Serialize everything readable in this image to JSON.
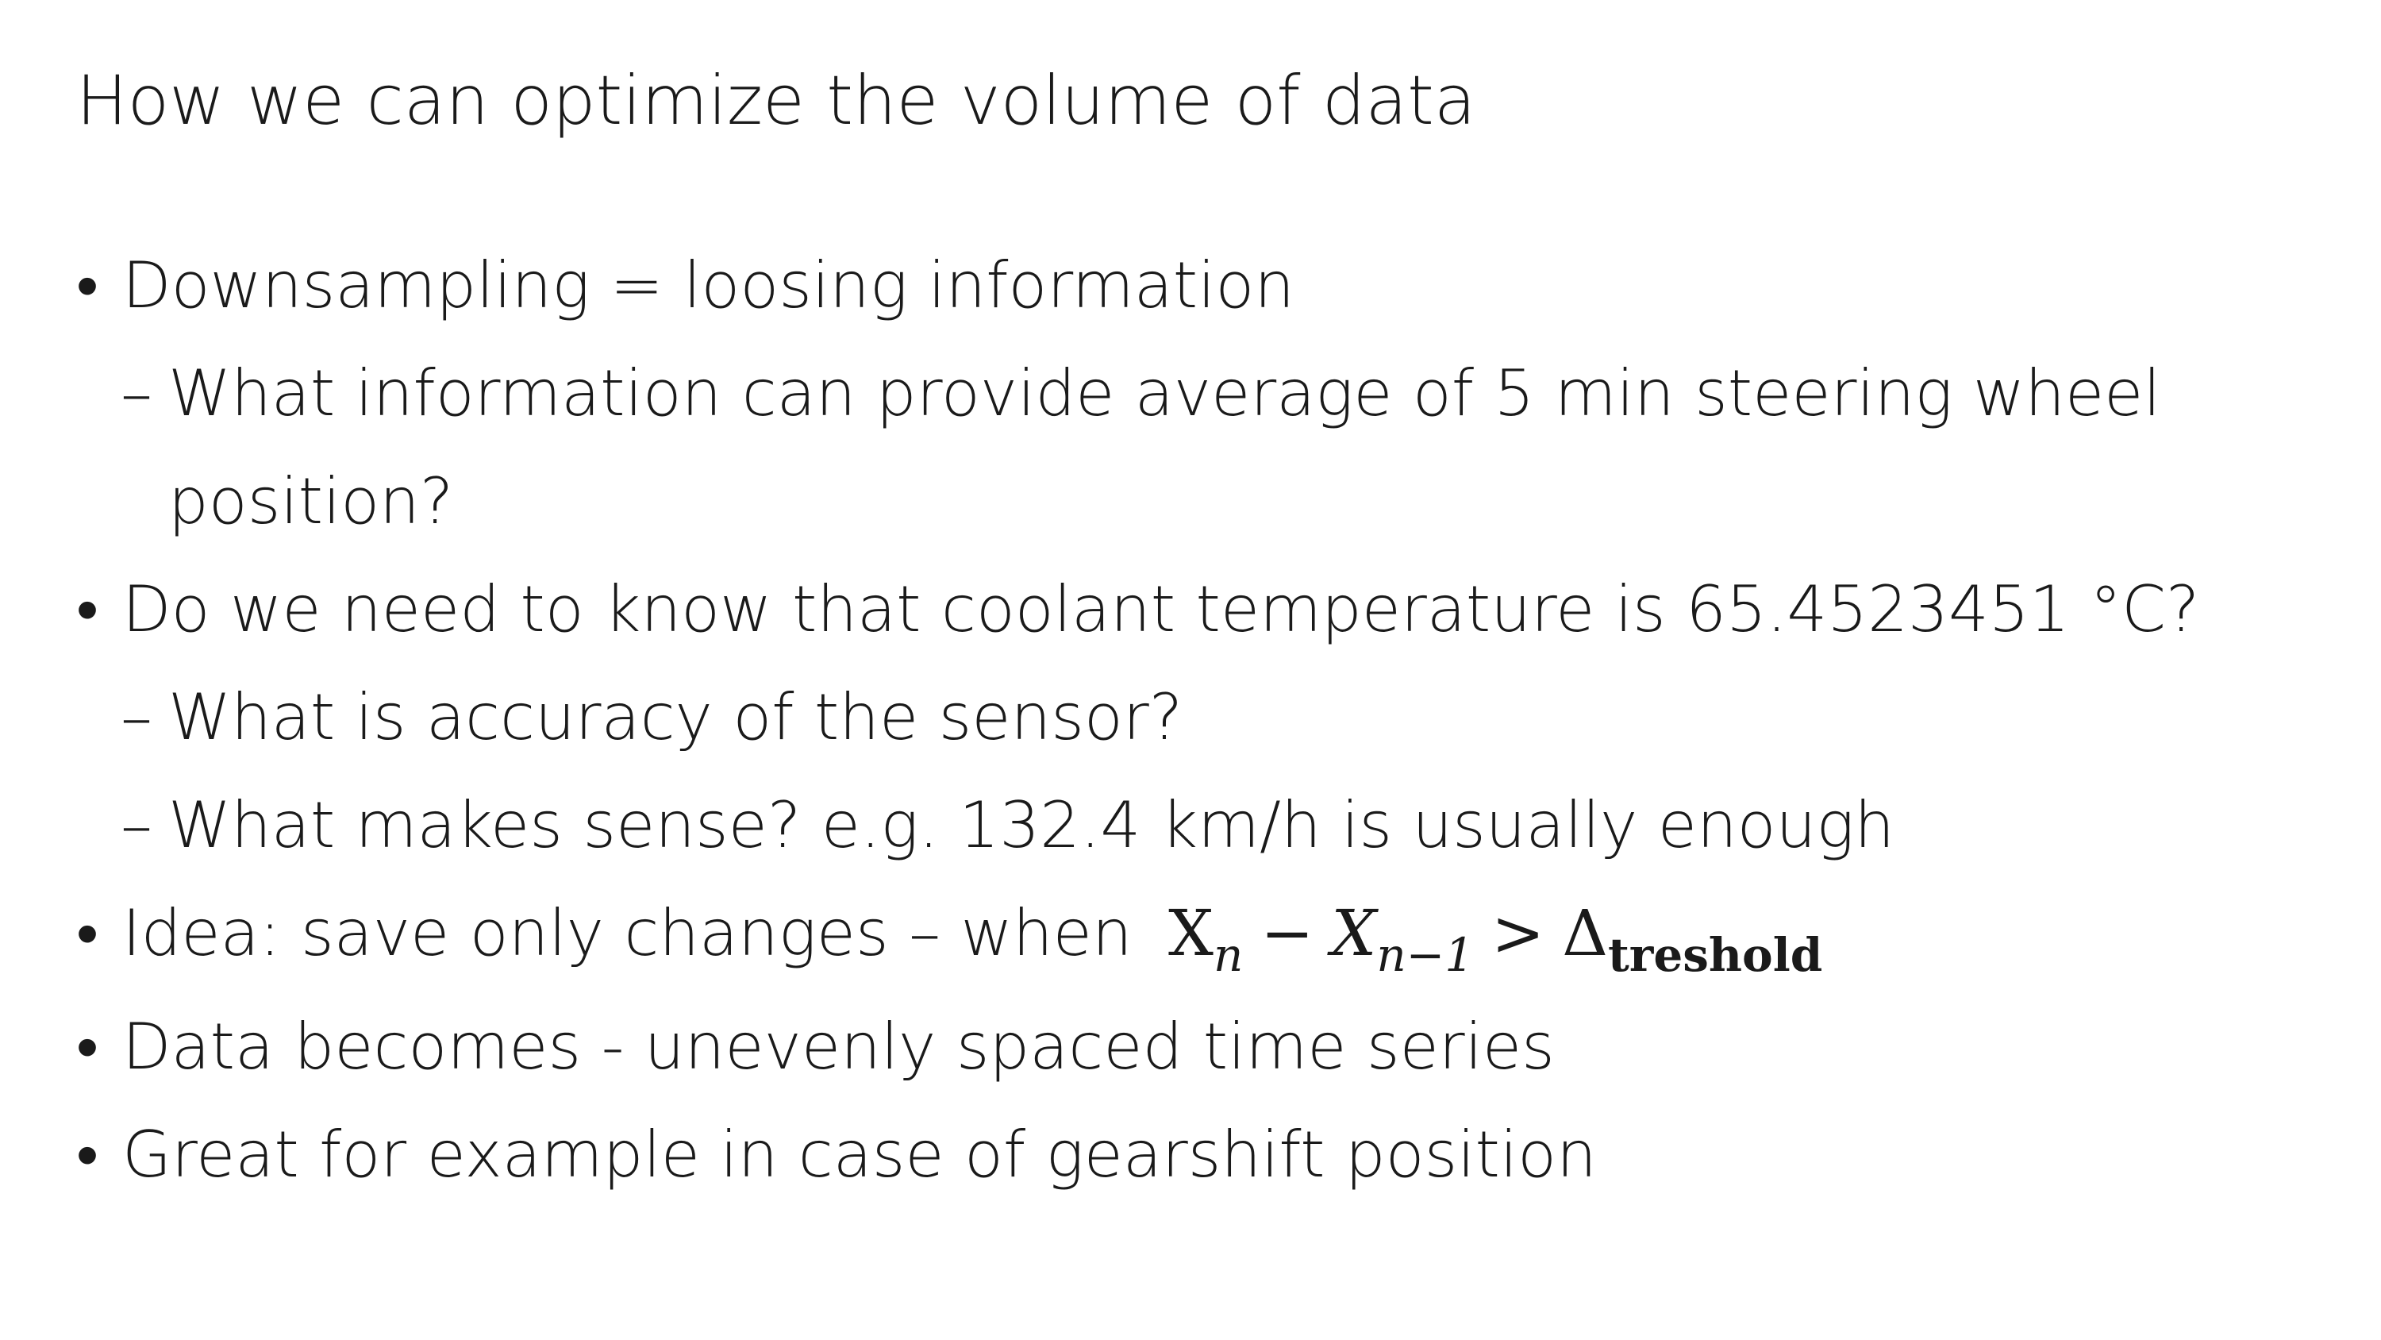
{
  "slide": {
    "title": "How we can optimize the volume of data",
    "items": [
      {
        "level": 1,
        "marker": "•",
        "text": "Downsampling = loosing information"
      },
      {
        "level": 2,
        "marker": "–",
        "text": "What information can provide average of 5 min steering wheel position?"
      },
      {
        "level": 1,
        "marker": "•",
        "text": "Do we need to know that coolant temperature is 65.4523451 °C?"
      },
      {
        "level": 2,
        "marker": "–",
        "text": "What is accuracy of the sensor?"
      },
      {
        "level": 2,
        "marker": "–",
        "text": "What makes sense? e.g. 132.4 km/h is usually enough"
      },
      {
        "level": 1,
        "marker": "•",
        "text": "Idea: save only changes – when"
      },
      {
        "level": 1,
        "marker": "•",
        "text": "Data becomes - unevenly spaced time series"
      },
      {
        "level": 1,
        "marker": "•",
        "text": "Great for example in case of gearshift position"
      }
    ],
    "formula": {
      "x_n": "X",
      "sub_n": "n",
      "minus": "−",
      "x_prev": "X",
      "sub_prev": "n−1",
      "greater": ">",
      "delta": "Δ",
      "sub_threshold": "treshold"
    }
  }
}
